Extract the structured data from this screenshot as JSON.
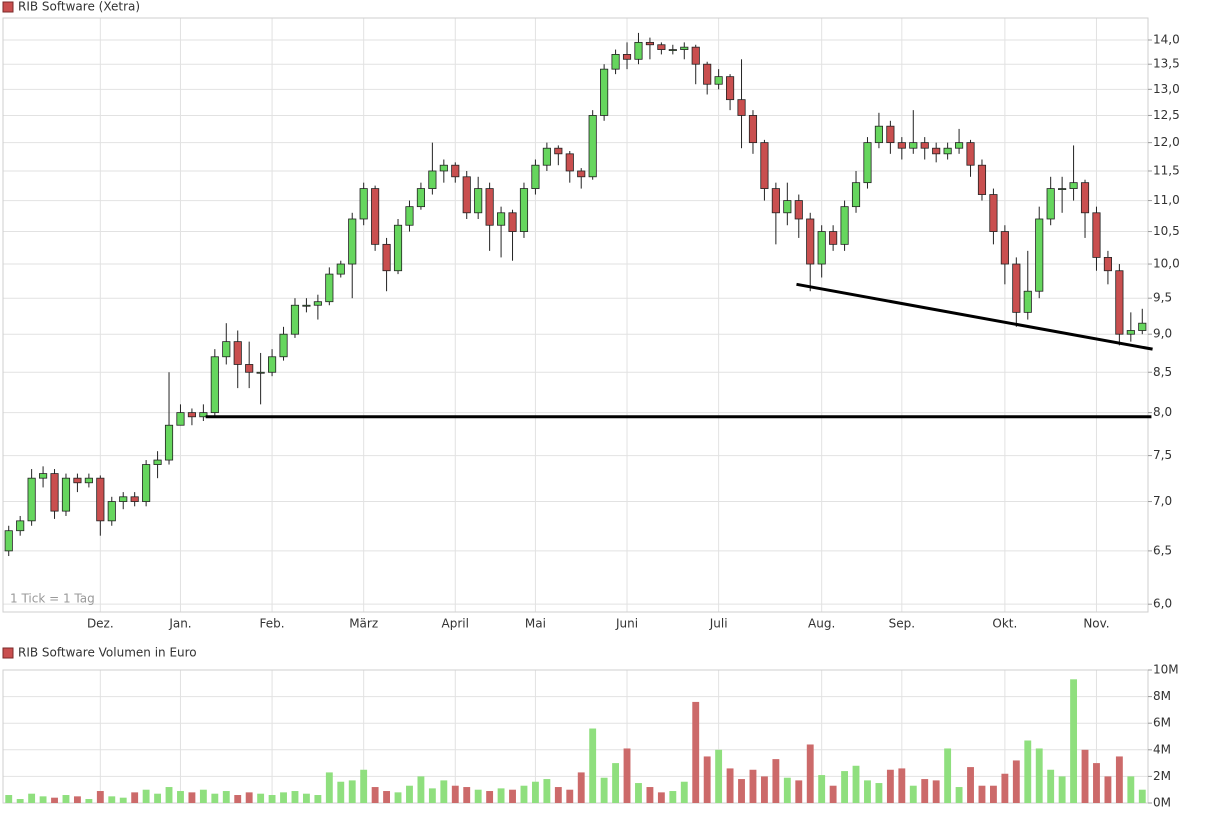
{
  "chart_data": [
    {
      "type": "candlestick",
      "title": "RIB Software (Xetra)",
      "annotation": "1 Tick = 1 Tag",
      "log": true,
      "grid": true,
      "up_color": "#66d65e",
      "down_color": "#c94f4f",
      "categories": [
        null,
        null,
        null,
        null,
        null,
        null,
        null,
        null,
        "Dez.",
        null,
        null,
        null,
        null,
        null,
        null,
        "Jan.",
        null,
        null,
        null,
        null,
        null,
        null,
        null,
        "Feb.",
        null,
        null,
        null,
        null,
        null,
        null,
        null,
        "März",
        null,
        null,
        null,
        null,
        null,
        null,
        null,
        "April",
        null,
        null,
        null,
        null,
        null,
        null,
        "Mai",
        null,
        null,
        null,
        null,
        null,
        null,
        null,
        "Juni",
        null,
        null,
        null,
        null,
        null,
        null,
        null,
        "Juli",
        null,
        null,
        null,
        null,
        null,
        null,
        null,
        null,
        "Aug.",
        null,
        null,
        null,
        null,
        null,
        null,
        "Sep.",
        null,
        null,
        null,
        null,
        null,
        null,
        null,
        null,
        "Okt.",
        null,
        null,
        null,
        null,
        null,
        null,
        null,
        "Nov.",
        null,
        null,
        null,
        null
      ],
      "open": [
        6.5,
        6.7,
        6.8,
        7.25,
        7.3,
        6.9,
        7.25,
        7.2,
        7.25,
        6.8,
        7.0,
        7.05,
        7.0,
        7.4,
        7.45,
        7.85,
        8.0,
        7.95,
        8.0,
        8.7,
        8.9,
        8.6,
        8.5,
        8.5,
        8.7,
        9.0,
        9.4,
        9.4,
        9.45,
        9.85,
        10.0,
        10.7,
        11.2,
        10.3,
        9.9,
        10.6,
        10.9,
        11.2,
        11.5,
        11.6,
        11.4,
        10.8,
        11.2,
        10.6,
        10.8,
        10.5,
        11.2,
        11.6,
        11.9,
        11.8,
        11.5,
        11.4,
        12.5,
        13.4,
        13.7,
        13.6,
        13.95,
        13.9,
        13.8,
        13.8,
        13.85,
        13.5,
        13.1,
        13.25,
        12.8,
        12.5,
        12.0,
        11.2,
        10.8,
        11.0,
        10.7,
        10.0,
        10.5,
        10.3,
        10.9,
        11.3,
        12.0,
        12.3,
        12.0,
        11.9,
        12.0,
        11.9,
        11.8,
        11.9,
        12.0,
        11.6,
        11.1,
        10.5,
        10.0,
        9.3,
        9.6,
        10.7,
        11.2,
        11.2,
        11.3,
        10.8,
        10.1,
        9.9,
        9.0,
        9.05
      ],
      "high": [
        6.75,
        6.85,
        7.35,
        7.38,
        7.35,
        7.3,
        7.3,
        7.3,
        7.28,
        7.05,
        7.1,
        7.1,
        7.45,
        7.55,
        8.5,
        8.1,
        8.05,
        8.1,
        8.8,
        9.15,
        9.05,
        8.9,
        8.75,
        8.8,
        9.1,
        9.5,
        9.5,
        9.55,
        9.95,
        10.05,
        10.8,
        11.3,
        11.25,
        10.4,
        10.7,
        11.0,
        11.3,
        12.0,
        11.7,
        11.65,
        11.5,
        11.4,
        11.3,
        10.9,
        10.85,
        11.3,
        11.7,
        12.0,
        11.95,
        11.85,
        11.55,
        12.6,
        13.5,
        13.8,
        13.95,
        14.15,
        14.05,
        13.95,
        13.9,
        13.95,
        13.9,
        13.55,
        13.4,
        13.3,
        13.6,
        12.6,
        12.05,
        11.3,
        11.3,
        11.1,
        10.8,
        10.6,
        10.6,
        11.0,
        11.5,
        12.1,
        12.55,
        12.4,
        12.1,
        12.6,
        12.1,
        12.0,
        12.0,
        12.25,
        12.05,
        11.7,
        11.2,
        10.6,
        10.1,
        10.2,
        10.9,
        11.4,
        11.4,
        11.95,
        11.35,
        10.9,
        10.2,
        10.0,
        9.3,
        9.35
      ],
      "low": [
        6.45,
        6.65,
        6.75,
        7.15,
        6.82,
        6.85,
        7.1,
        7.15,
        6.65,
        6.75,
        6.92,
        6.95,
        6.95,
        7.25,
        7.4,
        7.85,
        7.85,
        7.9,
        7.95,
        8.6,
        8.3,
        8.3,
        8.1,
        8.45,
        8.65,
        8.95,
        9.3,
        9.2,
        9.4,
        9.8,
        9.5,
        10.6,
        10.2,
        9.6,
        9.85,
        10.5,
        10.85,
        11.1,
        11.3,
        11.3,
        10.7,
        10.7,
        10.2,
        10.1,
        10.05,
        10.4,
        11.1,
        11.5,
        11.6,
        11.3,
        11.2,
        11.35,
        12.4,
        13.3,
        13.4,
        13.5,
        13.6,
        13.7,
        13.7,
        13.6,
        13.1,
        12.9,
        13.0,
        12.6,
        11.9,
        11.8,
        11.0,
        10.3,
        10.6,
        10.4,
        9.6,
        9.8,
        10.2,
        10.2,
        10.8,
        11.2,
        11.9,
        11.8,
        11.7,
        11.8,
        11.7,
        11.65,
        11.7,
        11.8,
        11.4,
        11.0,
        10.3,
        9.7,
        9.1,
        9.2,
        9.5,
        10.6,
        10.8,
        11.0,
        10.4,
        9.9,
        9.7,
        8.85,
        8.9,
        9.0
      ],
      "close": [
        6.7,
        6.8,
        7.25,
        7.3,
        6.9,
        7.25,
        7.2,
        7.25,
        6.8,
        7.0,
        7.05,
        7.0,
        7.4,
        7.45,
        7.85,
        8.0,
        7.95,
        8.0,
        8.7,
        8.9,
        8.6,
        8.5,
        8.5,
        8.7,
        9.0,
        9.4,
        9.4,
        9.45,
        9.85,
        10.0,
        10.7,
        11.2,
        10.3,
        9.9,
        10.6,
        10.9,
        11.2,
        11.5,
        11.6,
        11.4,
        10.8,
        11.2,
        10.6,
        10.8,
        10.5,
        11.2,
        11.6,
        11.9,
        11.8,
        11.5,
        11.4,
        12.5,
        13.4,
        13.7,
        13.6,
        13.95,
        13.9,
        13.8,
        13.8,
        13.85,
        13.5,
        13.1,
        13.25,
        12.8,
        12.5,
        12.0,
        11.2,
        10.8,
        11.0,
        10.7,
        10.0,
        10.5,
        10.3,
        10.9,
        11.3,
        12.0,
        12.3,
        12.0,
        11.9,
        12.0,
        11.9,
        11.8,
        11.9,
        12.0,
        11.6,
        11.1,
        10.5,
        10.0,
        9.3,
        9.6,
        10.7,
        11.2,
        11.2,
        11.3,
        10.8,
        10.1,
        9.9,
        9.0,
        9.05,
        9.15
      ],
      "ylim": [
        5.93,
        14.47
      ],
      "yticks": [
        {
          "value": 6.0,
          "label": "6,0"
        },
        {
          "value": 6.5,
          "label": "6,5"
        },
        {
          "value": 7.0,
          "label": "7,0"
        },
        {
          "value": 7.5,
          "label": "7,5"
        },
        {
          "value": 8.0,
          "label": "8,0"
        },
        {
          "value": 8.5,
          "label": "8,5"
        },
        {
          "value": 9.0,
          "label": "9,0"
        },
        {
          "value": 9.5,
          "label": "9,5"
        },
        {
          "value": 10.0,
          "label": "10,0"
        },
        {
          "value": 10.5,
          "label": "10,5"
        },
        {
          "value": 11.0,
          "label": "11,0"
        },
        {
          "value": 11.5,
          "label": "11,5"
        },
        {
          "value": 12.0,
          "label": "12,0"
        },
        {
          "value": 12.5,
          "label": "12,5"
        },
        {
          "value": 13.0,
          "label": "13,0"
        },
        {
          "value": 13.5,
          "label": "13,5"
        },
        {
          "value": 14.0,
          "label": "14,0"
        }
      ],
      "trend_lines": [
        {
          "x": [
            17.7,
            100.3
          ],
          "values": [
            7.95,
            7.95
          ]
        },
        {
          "x": [
            69.3,
            100.4
          ],
          "values": [
            9.7,
            8.8
          ]
        }
      ]
    },
    {
      "type": "bar",
      "title": "RIB Software Volumen in Euro",
      "grid": true,
      "up_color": "#8fdf7e",
      "down_color": "#cc6a6a",
      "values": [
        0.6,
        0.3,
        0.7,
        0.5,
        0.4,
        0.6,
        0.5,
        0.3,
        0.9,
        0.5,
        0.4,
        0.8,
        1.0,
        0.7,
        1.2,
        0.9,
        0.8,
        1.0,
        0.7,
        0.9,
        0.6,
        0.8,
        0.7,
        0.6,
        0.8,
        0.9,
        0.7,
        0.6,
        2.3,
        1.6,
        1.7,
        2.5,
        1.2,
        0.9,
        0.8,
        1.3,
        2.0,
        1.1,
        1.7,
        1.3,
        1.2,
        1.0,
        0.9,
        1.1,
        1.0,
        1.3,
        1.6,
        1.8,
        1.2,
        1.0,
        2.3,
        5.6,
        1.9,
        3.0,
        4.1,
        1.5,
        1.2,
        0.8,
        0.9,
        1.6,
        7.6,
        3.5,
        4.0,
        2.6,
        1.8,
        2.5,
        2.0,
        3.3,
        1.9,
        1.7,
        4.4,
        2.1,
        1.3,
        2.4,
        2.8,
        1.7,
        1.5,
        2.5,
        2.6,
        1.3,
        1.8,
        1.7,
        4.1,
        1.2,
        2.7,
        1.3,
        1.3,
        2.2,
        3.2,
        4.7,
        4.1,
        2.5,
        2.0,
        9.3,
        4.0,
        3.0,
        2.0,
        3.5,
        2.0,
        1.0
      ],
      "ylim": [
        0,
        10
      ],
      "yticks": [
        {
          "value": 0,
          "label": "0M"
        },
        {
          "value": 2,
          "label": "2M"
        },
        {
          "value": 4,
          "label": "4M"
        },
        {
          "value": 6,
          "label": "6M"
        },
        {
          "value": 8,
          "label": "8M"
        },
        {
          "value": 10,
          "label": "10M"
        }
      ]
    }
  ]
}
